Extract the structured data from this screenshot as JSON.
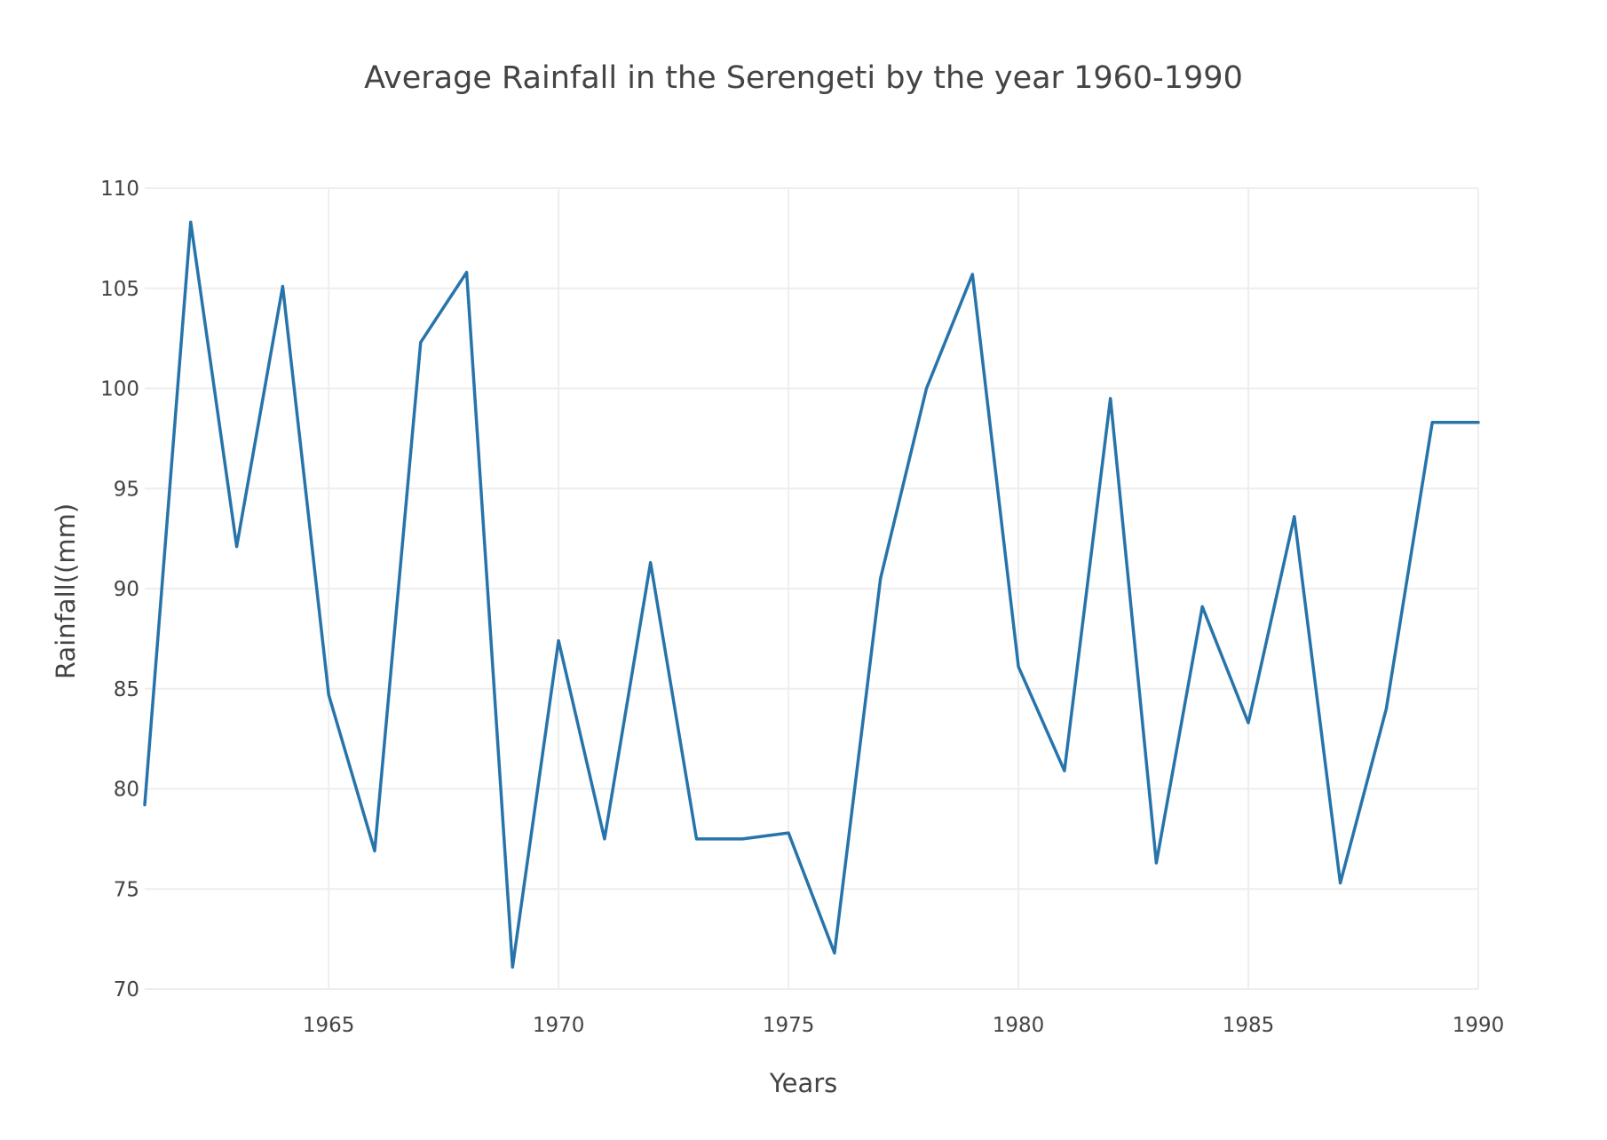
{
  "chart_data": {
    "type": "line",
    "title": "Average Rainfall in the Serengeti by the year 1960-1990",
    "xlabel": "Years",
    "ylabel": "Rainfall((mm)",
    "xlim": [
      1961,
      1990
    ],
    "ylim": [
      70,
      110
    ],
    "x_ticks": [
      1965,
      1970,
      1975,
      1980,
      1985,
      1990
    ],
    "y_ticks": [
      70,
      75,
      80,
      85,
      90,
      95,
      100,
      105,
      110
    ],
    "grid": true,
    "legend": "none",
    "colors": {
      "line": "#2774ab",
      "grid": "#eeeeee",
      "text": "#444444"
    },
    "x": [
      1961,
      1962,
      1963,
      1964,
      1965,
      1966,
      1967,
      1968,
      1969,
      1970,
      1971,
      1972,
      1973,
      1974,
      1975,
      1976,
      1977,
      1978,
      1979,
      1980,
      1981,
      1982,
      1983,
      1984,
      1985,
      1986,
      1987,
      1988,
      1989,
      1990
    ],
    "series": [
      {
        "values": [
          79.2,
          108.3,
          92.1,
          105.1,
          84.7,
          76.9,
          102.3,
          105.8,
          71.1,
          87.4,
          77.5,
          91.3,
          77.5,
          77.5,
          77.8,
          71.8,
          90.5,
          100.0,
          105.7,
          86.1,
          80.9,
          99.5,
          76.3,
          89.1,
          83.3,
          93.6,
          75.3,
          84.0,
          98.3,
          98.3
        ]
      }
    ]
  }
}
